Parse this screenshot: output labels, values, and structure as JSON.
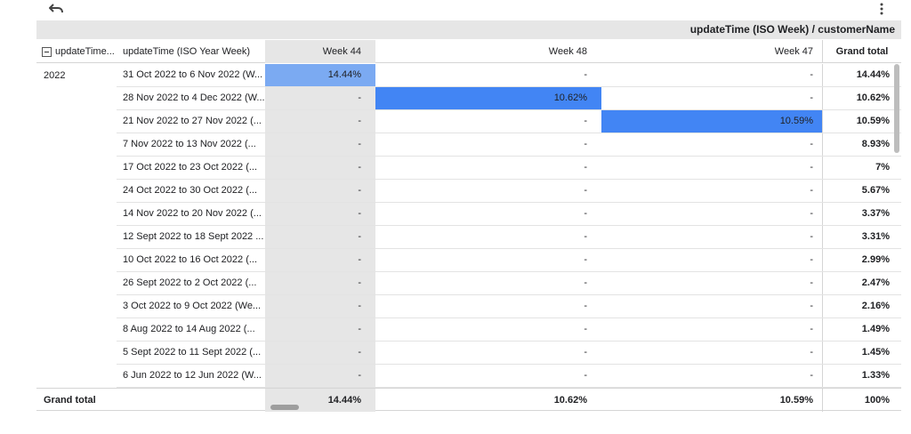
{
  "toolbar": {
    "undo_icon": "undo-icon",
    "more_icon": "more-vert-icon"
  },
  "title": "updateTime (ISO Week) / customerName",
  "headers": {
    "col1": "updateTime...",
    "col2": "updateTime (ISO Year Week)",
    "col3": "Week 44",
    "col4": "Week 48",
    "col5": "Week 47",
    "col6": "Grand total"
  },
  "year": "2022",
  "rows": [
    {
      "date": "31 Oct 2022 to 6 Nov 2022 (W...",
      "w44": "14.44%",
      "w48": "-",
      "w47": "-",
      "gt": "14.44%"
    },
    {
      "date": "28 Nov 2022 to 4 Dec 2022 (W...",
      "w44": "-",
      "w48": "10.62%",
      "w47": "-",
      "gt": "10.62%"
    },
    {
      "date": "21 Nov 2022 to 27 Nov 2022 (...",
      "w44": "-",
      "w48": "-",
      "w47": "10.59%",
      "gt": "10.59%"
    },
    {
      "date": "7 Nov 2022 to 13 Nov 2022 (...",
      "w44": "-",
      "w48": "-",
      "w47": "-",
      "gt": "8.93%"
    },
    {
      "date": "17 Oct 2022 to 23 Oct 2022 (...",
      "w44": "-",
      "w48": "-",
      "w47": "-",
      "gt": "7%"
    },
    {
      "date": "24 Oct 2022 to 30 Oct 2022 (...",
      "w44": "-",
      "w48": "-",
      "w47": "-",
      "gt": "5.67%"
    },
    {
      "date": "14 Nov 2022 to 20 Nov 2022 (...",
      "w44": "-",
      "w48": "-",
      "w47": "-",
      "gt": "3.37%"
    },
    {
      "date": "12 Sept 2022 to 18 Sept 2022 ...",
      "w44": "-",
      "w48": "-",
      "w47": "-",
      "gt": "3.31%"
    },
    {
      "date": "10 Oct 2022 to 16 Oct 2022 (...",
      "w44": "-",
      "w48": "-",
      "w47": "-",
      "gt": "2.99%"
    },
    {
      "date": "26 Sept 2022 to 2 Oct 2022 (...",
      "w44": "-",
      "w48": "-",
      "w47": "-",
      "gt": "2.47%"
    },
    {
      "date": "3 Oct 2022 to 9 Oct 2022 (We...",
      "w44": "-",
      "w48": "-",
      "w47": "-",
      "gt": "2.16%"
    },
    {
      "date": "8 Aug 2022 to 14 Aug 2022 (...",
      "w44": "-",
      "w48": "-",
      "w47": "-",
      "gt": "1.49%"
    },
    {
      "date": "5 Sept 2022 to 11 Sept 2022 (...",
      "w44": "-",
      "w48": "-",
      "w47": "-",
      "gt": "1.45%"
    },
    {
      "date": "6 Jun 2022 to 12 Jun 2022 (W...",
      "w44": "-",
      "w48": "-",
      "w47": "-",
      "gt": "1.33%"
    }
  ],
  "footer": {
    "label": "Grand total",
    "w44": "14.44%",
    "w48": "10.62%",
    "w47": "10.59%",
    "gt": "100%"
  },
  "colors": {
    "highlight": "#4285f4",
    "highlight_light": "#7baaf2",
    "shade": "#e6e6e6"
  }
}
